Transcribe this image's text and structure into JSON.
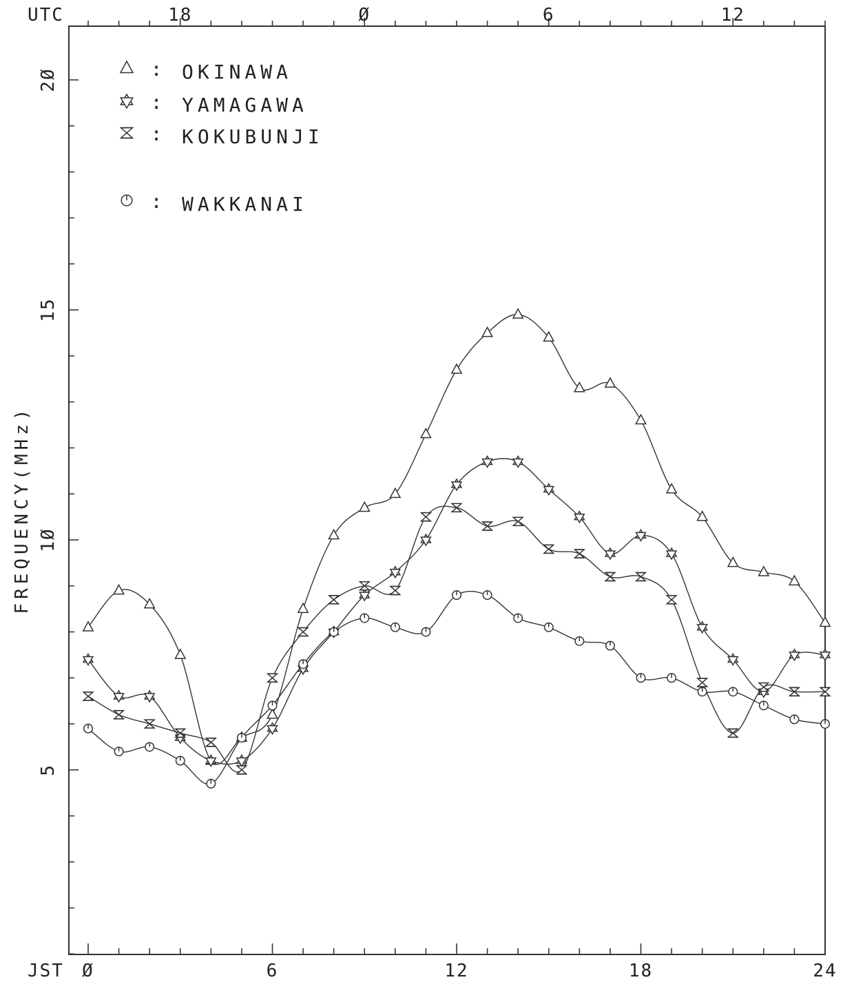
{
  "chart_data": {
    "type": "line",
    "title": "",
    "xlabel": "JST",
    "x2label": "UTC",
    "ylabel": "FREQUENCY(MHz)",
    "xlim": [
      0,
      24
    ],
    "ylim": [
      0,
      20.5
    ],
    "x_ticks": [
      0,
      6,
      12,
      18,
      24
    ],
    "x_tick_labels": [
      "Ø",
      "6",
      "12",
      "18",
      "24"
    ],
    "utc_ticks": [
      18,
      0,
      6,
      12
    ],
    "utc_tick_labels": [
      "18",
      "Ø",
      "6",
      "12"
    ],
    "utc_offset_hours": -9,
    "y_ticks": [
      5,
      10,
      15,
      20
    ],
    "y_tick_labels": [
      "5",
      "1Ø",
      "15",
      "2Ø"
    ],
    "grid": false,
    "legend_position": "top-left",
    "x": [
      0,
      1,
      2,
      3,
      4,
      5,
      6,
      7,
      8,
      9,
      10,
      11,
      12,
      13,
      14,
      15,
      16,
      17,
      18,
      19,
      20,
      21,
      22,
      23,
      24
    ],
    "series": [
      {
        "name": "OKINAWA",
        "marker": "triangle",
        "values": [
          8.1,
          8.9,
          8.6,
          7.5,
          5.2,
          5.7,
          6.2,
          8.5,
          10.1,
          10.7,
          11.0,
          12.3,
          13.7,
          14.5,
          14.9,
          14.4,
          13.3,
          13.4,
          12.6,
          11.1,
          10.5,
          9.5,
          9.3,
          9.1,
          8.2
        ]
      },
      {
        "name": "YAMAGAWA",
        "marker": "hexagram",
        "values": [
          7.4,
          6.6,
          6.6,
          5.7,
          5.2,
          5.2,
          5.9,
          7.2,
          8.0,
          8.8,
          9.3,
          10.0,
          11.2,
          11.7,
          11.7,
          11.1,
          10.5,
          9.7,
          10.1,
          9.7,
          8.1,
          7.4,
          6.7,
          7.5,
          7.5
        ]
      },
      {
        "name": "KOKUBUNJI",
        "marker": "hourglass",
        "values": [
          6.6,
          6.2,
          6.0,
          5.8,
          5.6,
          5.0,
          7.0,
          8.0,
          8.7,
          9.0,
          8.9,
          10.5,
          10.7,
          10.3,
          10.4,
          9.8,
          9.7,
          9.2,
          9.2,
          8.7,
          6.9,
          5.8,
          6.8,
          6.7,
          6.7
        ]
      },
      {
        "name": "WAKKANAI",
        "marker": "circle",
        "values": [
          5.9,
          5.4,
          5.5,
          5.2,
          4.7,
          5.7,
          6.4,
          7.3,
          8.0,
          8.3,
          8.1,
          8.0,
          8.8,
          8.8,
          8.3,
          8.1,
          7.8,
          7.7,
          7.0,
          7.0,
          6.7,
          6.7,
          6.4,
          6.1,
          6.0
        ]
      }
    ],
    "legend_entries": [
      {
        "marker": "triangle",
        "separator": ":",
        "name": "OKINAWA"
      },
      {
        "marker": "hexagram",
        "separator": ":",
        "name": "YAMAGAWA"
      },
      {
        "marker": "hourglass",
        "separator": ":",
        "name": "KOKUBUNJI"
      },
      {
        "marker": "circle",
        "separator": ":",
        "name": "WAKKANAI"
      }
    ],
    "line_color": "#333333"
  }
}
